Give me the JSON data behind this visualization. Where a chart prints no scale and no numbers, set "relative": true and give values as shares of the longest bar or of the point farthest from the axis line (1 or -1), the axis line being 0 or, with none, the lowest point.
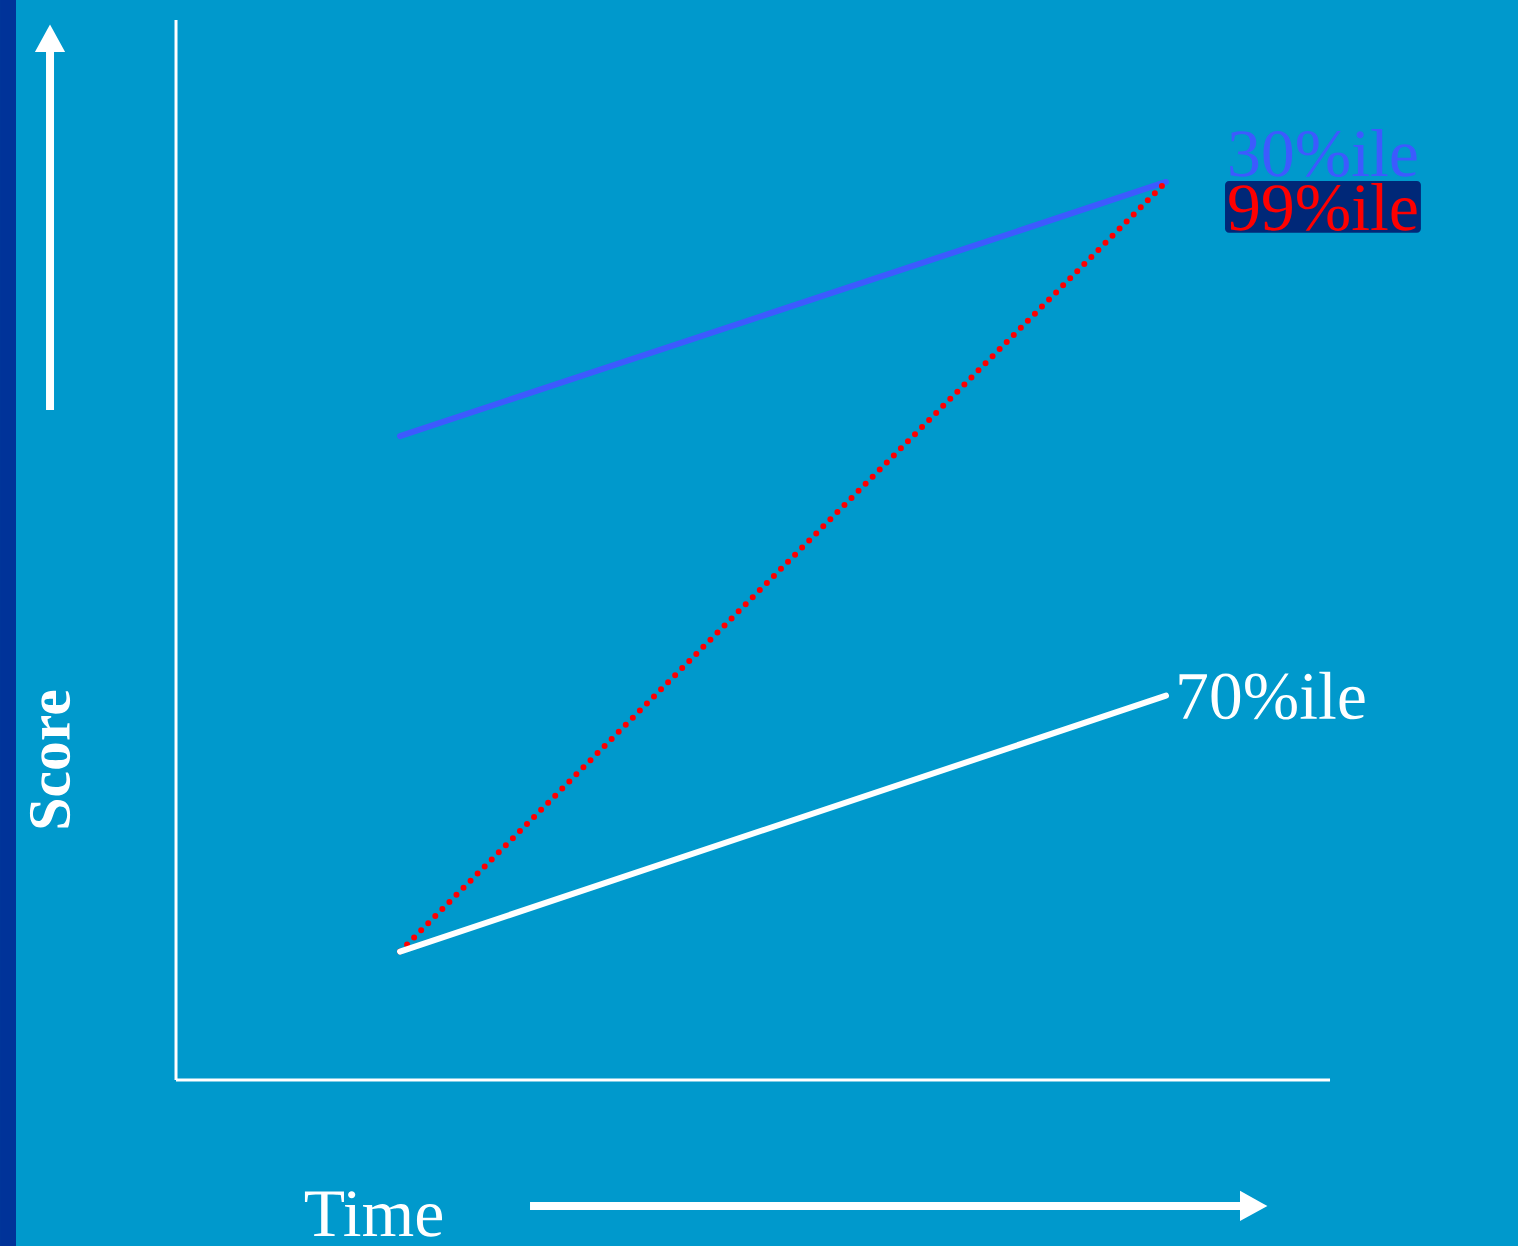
{
  "chart_data": {
    "type": "line",
    "relative": true,
    "xlabel": "Time",
    "ylabel": "Score",
    "categories": [
      null,
      null
    ],
    "legend": false,
    "series": [
      {
        "name": "30%ile",
        "color": "#3d5afe",
        "values": [
          0.717,
          1
        ]
      },
      {
        "name": "99%ile",
        "color": "#ff0000",
        "values": [
          0.143,
          1
        ],
        "line_style": "dotted"
      },
      {
        "name": "70%ile",
        "color": "#ffffff",
        "values": [
          0.143,
          0.428
        ]
      }
    ]
  }
}
